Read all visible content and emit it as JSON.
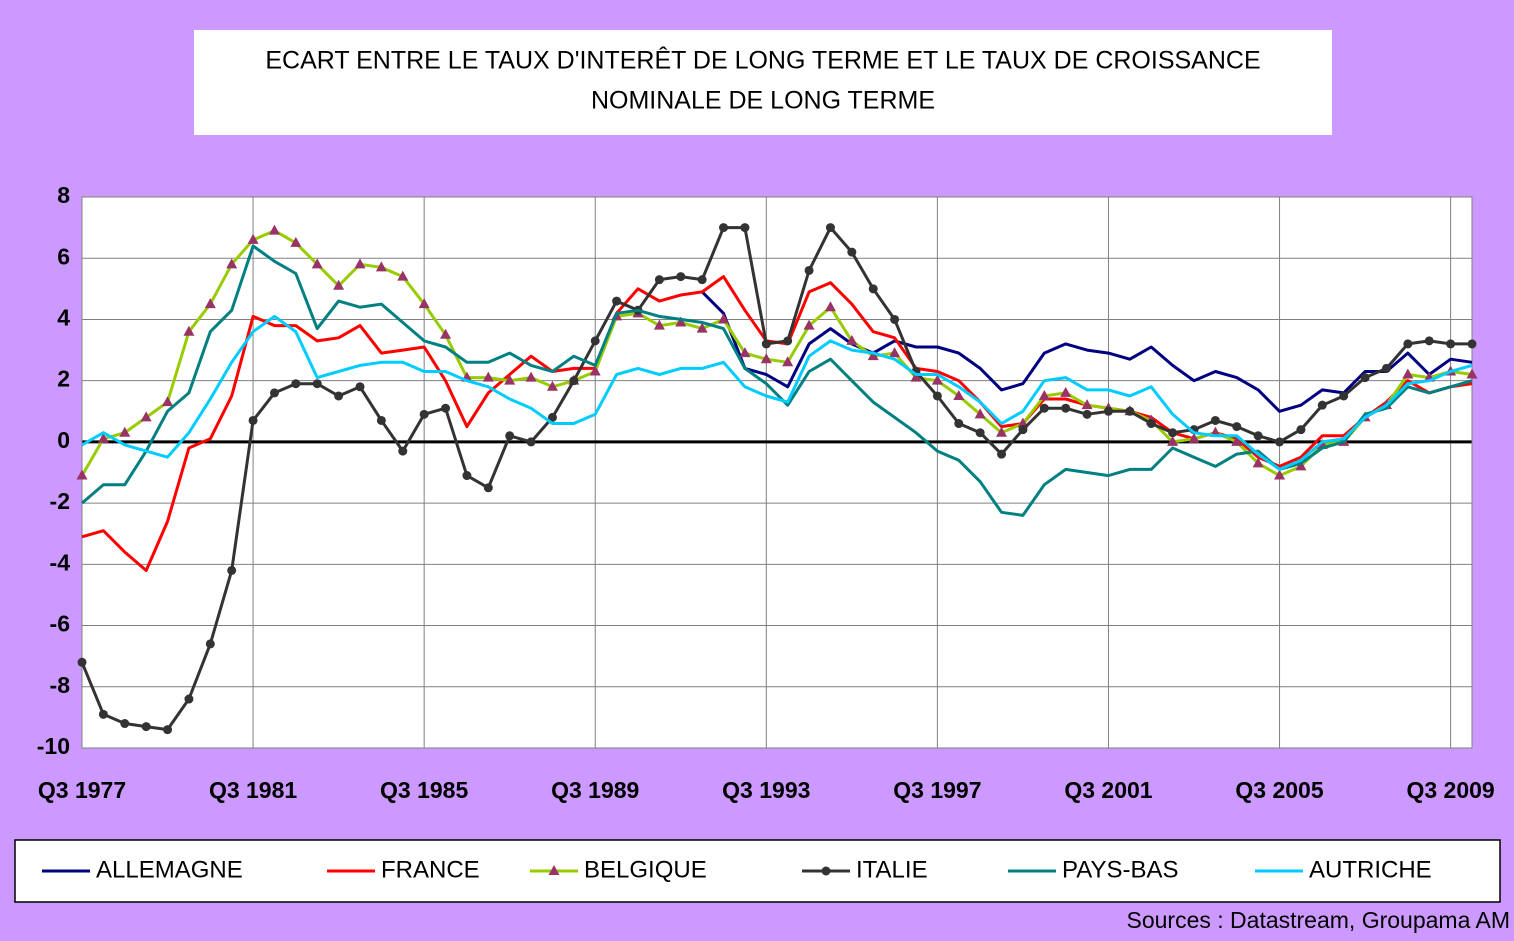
{
  "chart_data": {
    "type": "line",
    "title": [
      "ECART ENTRE LE TAUX D'INTERÊT DE LONG TERME ET LE TAUX DE CROISSANCE",
      "NOMINALE DE LONG TERME"
    ],
    "source": "Sources : Datastream, Groupama AM",
    "x": [
      1977.5,
      1978.0,
      1978.5,
      1979.0,
      1979.5,
      1980.0,
      1980.5,
      1981.0,
      1981.5,
      1982.0,
      1982.5,
      1983.0,
      1983.5,
      1984.0,
      1984.5,
      1985.0,
      1985.5,
      1986.0,
      1986.5,
      1987.0,
      1987.5,
      1988.0,
      1988.5,
      1989.0,
      1989.5,
      1990.0,
      1990.5,
      1991.0,
      1991.5,
      1992.0,
      1992.5,
      1993.0,
      1993.5,
      1994.0,
      1994.5,
      1995.0,
      1995.5,
      1996.0,
      1996.5,
      1997.0,
      1997.5,
      1998.0,
      1998.5,
      1999.0,
      1999.5,
      2000.0,
      2000.5,
      2001.0,
      2001.5,
      2002.0,
      2002.5,
      2003.0,
      2003.5,
      2004.0,
      2004.5,
      2005.0,
      2005.5,
      2006.0,
      2006.5,
      2007.0,
      2007.5,
      2008.0,
      2008.5,
      2009.0,
      2009.5,
      2010.0
    ],
    "xlim": [
      1977.5,
      2010.0
    ],
    "xticks": [
      {
        "value": 1977.5,
        "label": "Q3 1977"
      },
      {
        "value": 1981.5,
        "label": "Q3 1981"
      },
      {
        "value": 1985.5,
        "label": "Q3 1985"
      },
      {
        "value": 1989.5,
        "label": "Q3 1989"
      },
      {
        "value": 1993.5,
        "label": "Q3 1993"
      },
      {
        "value": 1997.5,
        "label": "Q3 1997"
      },
      {
        "value": 2001.5,
        "label": "Q3 2001"
      },
      {
        "value": 2005.5,
        "label": "Q3 2005"
      },
      {
        "value": 2009.5,
        "label": "Q3 2009"
      }
    ],
    "ylim": [
      -10,
      8
    ],
    "yticks": [
      8,
      6,
      4,
      2,
      0,
      -2,
      -4,
      -6,
      -8,
      -10
    ],
    "grid": true,
    "legend": "bottom",
    "series": [
      {
        "name": "ALLEMAGNE",
        "color": "#000080",
        "values": [
          null,
          null,
          null,
          null,
          null,
          null,
          null,
          null,
          null,
          null,
          null,
          null,
          null,
          null,
          null,
          null,
          null,
          null,
          null,
          null,
          null,
          null,
          null,
          null,
          null,
          null,
          null,
          null,
          null,
          4.9,
          4.2,
          2.4,
          2.2,
          1.8,
          3.2,
          3.7,
          3.2,
          2.9,
          3.3,
          3.1,
          3.1,
          2.9,
          2.4,
          1.7,
          1.9,
          2.9,
          3.2,
          3.0,
          2.9,
          2.7,
          3.1,
          2.5,
          2.0,
          2.3,
          2.1,
          1.7,
          1.0,
          1.2,
          1.7,
          1.6,
          2.3,
          2.3,
          2.9,
          2.2,
          2.7,
          2.6
        ]
      },
      {
        "name": "FRANCE",
        "color": "#ff0000",
        "values": [
          -3.1,
          -2.9,
          -3.6,
          -4.2,
          -2.6,
          -0.2,
          0.1,
          1.5,
          4.1,
          3.8,
          3.8,
          3.3,
          3.4,
          3.8,
          2.9,
          3.0,
          3.1,
          2.0,
          0.5,
          1.6,
          2.2,
          2.8,
          2.3,
          2.4,
          2.4,
          4.2,
          5.0,
          4.6,
          4.8,
          4.9,
          5.4,
          4.3,
          3.3,
          3.2,
          4.9,
          5.2,
          4.5,
          3.6,
          3.4,
          2.4,
          2.3,
          2.0,
          1.3,
          0.5,
          0.6,
          1.4,
          1.4,
          1.2,
          1.1,
          1.0,
          0.8,
          0.3,
          0.1,
          0.3,
          0.1,
          -0.5,
          -0.8,
          -0.5,
          0.2,
          0.2,
          0.8,
          1.3,
          2.0,
          1.6,
          1.8,
          1.9
        ]
      },
      {
        "name": "BELGIQUE",
        "color": "#99cc00",
        "marker": "triangle",
        "marker_color": "#993366",
        "values": [
          -1.1,
          0.1,
          0.3,
          0.8,
          1.3,
          3.6,
          4.5,
          5.8,
          6.6,
          6.9,
          6.5,
          5.8,
          5.1,
          5.8,
          5.7,
          5.4,
          4.5,
          3.5,
          2.1,
          2.1,
          2.0,
          2.1,
          1.8,
          2.0,
          2.3,
          4.1,
          4.2,
          3.8,
          3.9,
          3.7,
          4.0,
          2.9,
          2.7,
          2.6,
          3.8,
          4.4,
          3.3,
          2.8,
          2.9,
          2.1,
          2.0,
          1.5,
          0.9,
          0.3,
          0.6,
          1.5,
          1.6,
          1.2,
          1.1,
          1.0,
          0.7,
          0.0,
          0.1,
          0.3,
          0.0,
          -0.7,
          -1.1,
          -0.8,
          -0.1,
          0.0,
          0.8,
          1.2,
          2.2,
          2.1,
          2.3,
          2.2
        ]
      },
      {
        "name": "ITALIE",
        "color": "#333333",
        "marker": "circle",
        "marker_color": "#333333",
        "values": [
          -7.2,
          -8.9,
          -9.2,
          -9.3,
          -9.4,
          -8.4,
          -6.6,
          -4.2,
          0.7,
          1.6,
          1.9,
          1.9,
          1.5,
          1.8,
          0.7,
          -0.3,
          0.9,
          1.1,
          -1.1,
          -1.5,
          0.2,
          0.0,
          0.8,
          2.0,
          3.3,
          4.6,
          4.3,
          5.3,
          5.4,
          5.3,
          7.0,
          7.0,
          3.2,
          3.3,
          5.6,
          7.0,
          6.2,
          5.0,
          4.0,
          2.3,
          1.5,
          0.6,
          0.3,
          -0.4,
          0.4,
          1.1,
          1.1,
          0.9,
          1.0,
          1.0,
          0.6,
          0.3,
          0.4,
          0.7,
          0.5,
          0.2,
          0.0,
          0.4,
          1.2,
          1.5,
          2.1,
          2.4,
          3.2,
          3.3,
          3.2,
          3.2
        ]
      },
      {
        "name": "PAYS-BAS",
        "color": "#008080",
        "values": [
          -2.0,
          -1.4,
          -1.4,
          -0.3,
          1.0,
          1.6,
          3.6,
          4.3,
          6.4,
          5.9,
          5.5,
          3.7,
          4.6,
          4.4,
          4.5,
          3.9,
          3.3,
          3.1,
          2.6,
          2.6,
          2.9,
          2.5,
          2.3,
          2.8,
          2.5,
          4.2,
          4.3,
          4.1,
          4.0,
          3.9,
          3.7,
          2.4,
          1.9,
          1.2,
          2.3,
          2.7,
          2.0,
          1.3,
          0.8,
          0.3,
          -0.3,
          -0.6,
          -1.3,
          -2.3,
          -2.4,
          -1.4,
          -0.9,
          -1.0,
          -1.1,
          -0.9,
          -0.9,
          -0.2,
          -0.5,
          -0.8,
          -0.4,
          -0.3,
          -0.9,
          -0.7,
          -0.2,
          0.0,
          0.9,
          1.1,
          1.8,
          1.6,
          1.8,
          2.0
        ]
      },
      {
        "name": "AUTRICHE",
        "color": "#00ccff",
        "values": [
          -0.1,
          0.3,
          -0.1,
          -0.3,
          -0.5,
          0.3,
          1.4,
          2.6,
          3.6,
          4.1,
          3.6,
          2.1,
          2.3,
          2.5,
          2.6,
          2.6,
          2.3,
          2.3,
          2.0,
          1.8,
          1.4,
          1.1,
          0.6,
          0.6,
          0.9,
          2.2,
          2.4,
          2.2,
          2.4,
          2.4,
          2.6,
          1.8,
          1.5,
          1.3,
          2.8,
          3.3,
          3.0,
          2.9,
          2.7,
          2.2,
          2.2,
          1.8,
          1.3,
          0.6,
          1.0,
          2.0,
          2.1,
          1.7,
          1.7,
          1.5,
          1.8,
          0.9,
          0.3,
          0.2,
          0.2,
          -0.4,
          -0.9,
          -0.6,
          0.0,
          0.1,
          0.8,
          1.2,
          1.9,
          2.0,
          2.3,
          2.5
        ]
      }
    ]
  }
}
